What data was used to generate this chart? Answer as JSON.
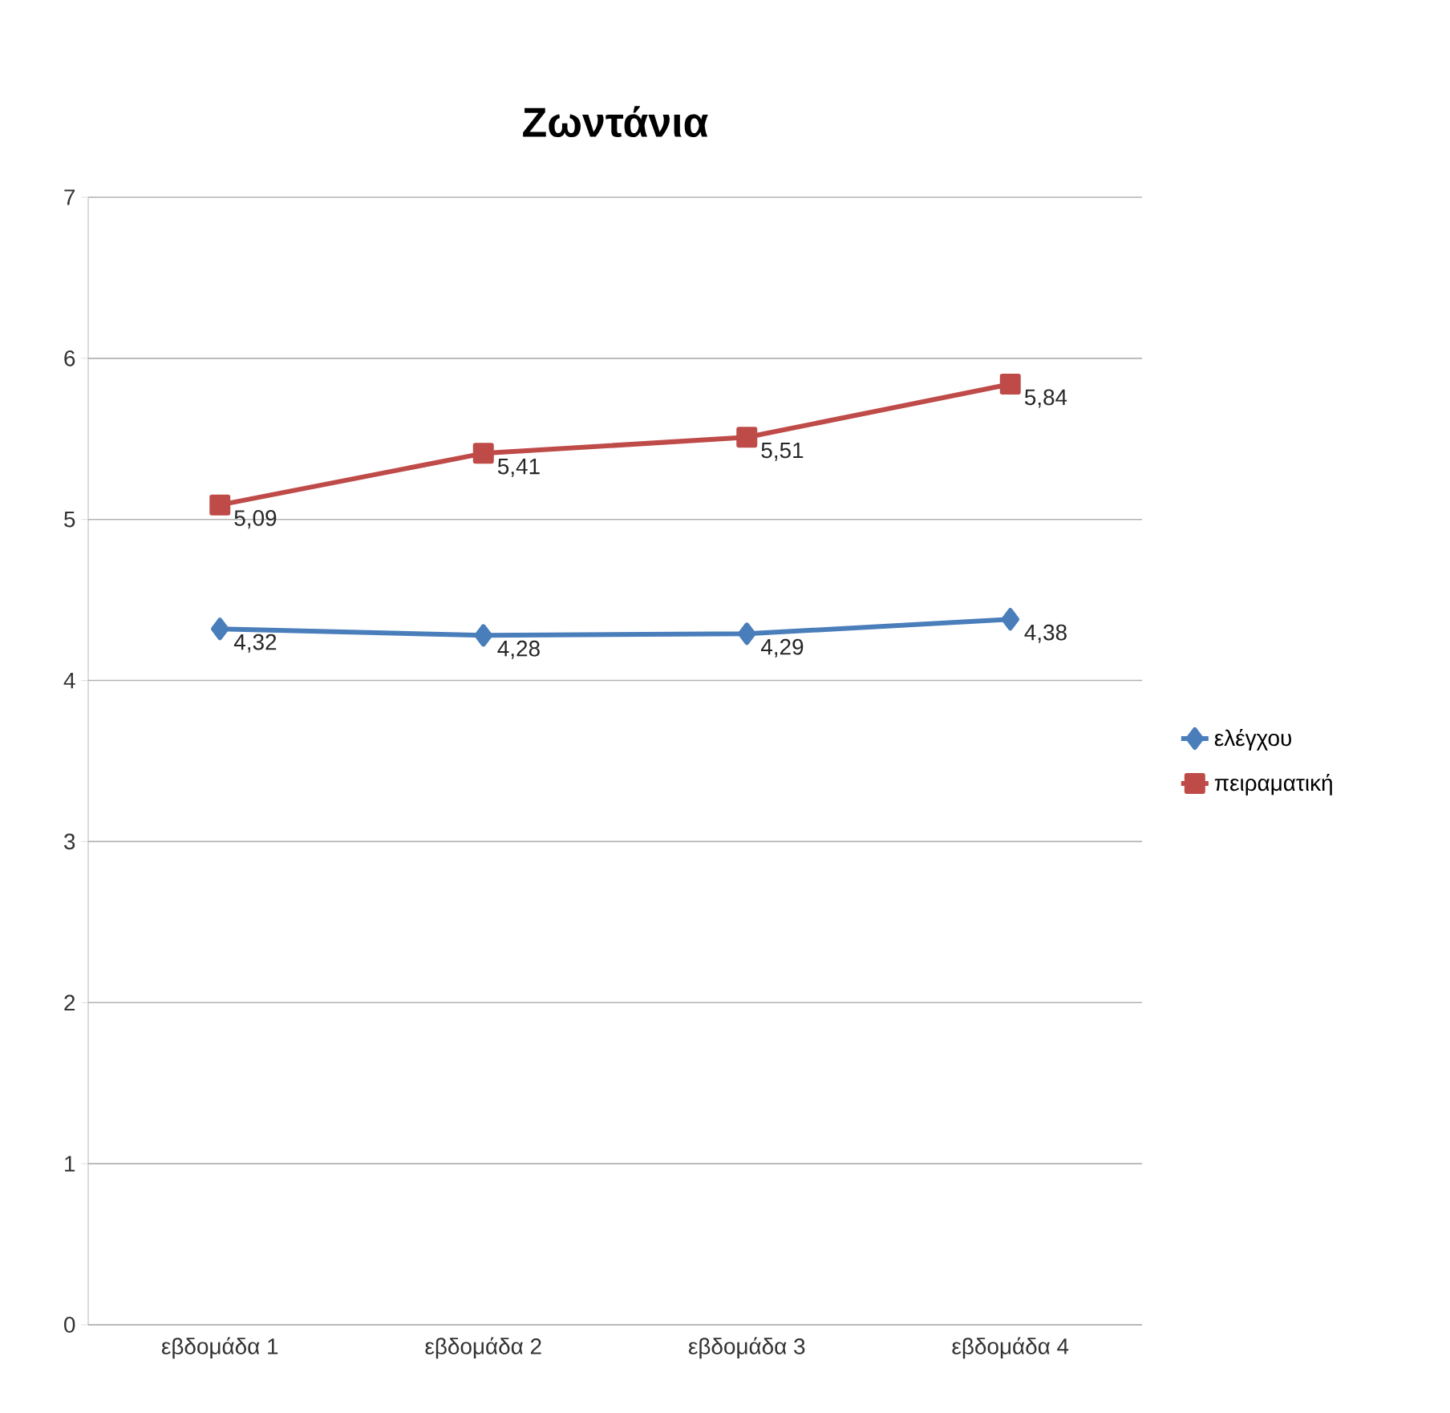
{
  "chart_data": {
    "type": "line",
    "title": "Ζωντάνια",
    "categories": [
      "εβδομάδα 1",
      "εβδομάδα 2",
      "εβδομάδα 3",
      "εβδομάδα 4"
    ],
    "series": [
      {
        "name": "ελέγχου",
        "color": "#4a7ebb",
        "marker": "diamond",
        "values": [
          4.32,
          4.28,
          4.29,
          4.38
        ],
        "value_labels": [
          "4,32",
          "4,28",
          "4,29",
          "4,38"
        ]
      },
      {
        "name": "πειραματική",
        "color": "#be4b48",
        "marker": "square",
        "values": [
          5.09,
          5.41,
          5.51,
          5.84
        ],
        "value_labels": [
          "5,09",
          "5,41",
          "5,51",
          "5,84"
        ]
      }
    ],
    "ylim": [
      0,
      7
    ],
    "yticks": [
      0,
      1,
      2,
      3,
      4,
      5,
      6,
      7
    ],
    "grid": "y",
    "legend": "right"
  }
}
